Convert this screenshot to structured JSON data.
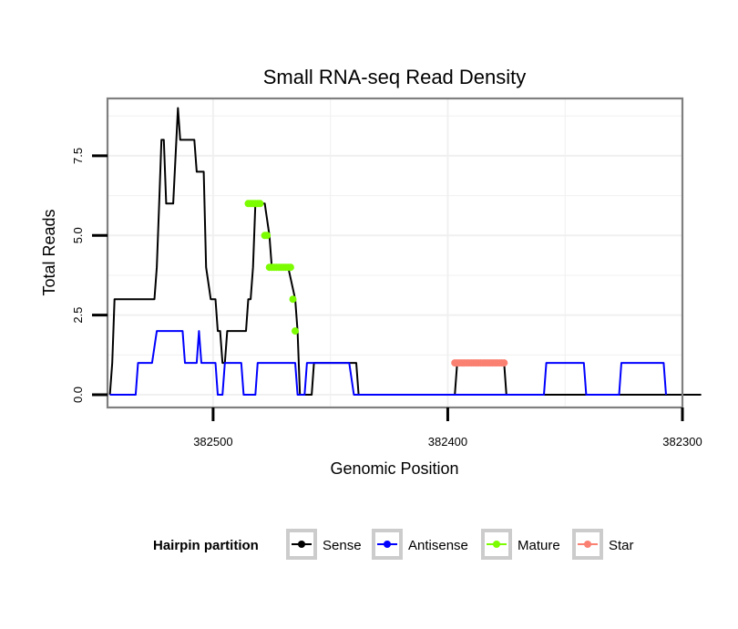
{
  "chart_data": {
    "type": "line",
    "title": "Small RNA-seq Read Density",
    "xlabel": "Genomic Position",
    "ylabel": "Total Reads",
    "x_reversed": true,
    "xlim": [
      382300,
      382545
    ],
    "ylim": [
      -0.4,
      9.3
    ],
    "x_ticks": [
      382500,
      382400,
      382300
    ],
    "x_tick_labels": [
      "382500",
      "382400",
      "382300"
    ],
    "y_ticks": [
      0,
      2.5,
      5,
      7.5
    ],
    "y_tick_labels": [
      "0.0",
      "2.5",
      "5.0",
      "7.5"
    ],
    "grid": true,
    "legend": {
      "title": "Hairpin partition",
      "position": "bottom",
      "entries": [
        {
          "name": "Sense",
          "color": "#000000"
        },
        {
          "name": "Antisense",
          "color": "#0000ff"
        },
        {
          "name": "Mature",
          "color": "#7cfc00"
        },
        {
          "name": "Star",
          "color": "#fa8072"
        }
      ]
    },
    "series": [
      {
        "name": "Sense",
        "color": "#000000",
        "style": "line",
        "points": [
          [
            382544,
            0
          ],
          [
            382543,
            1
          ],
          [
            382542,
            3
          ],
          [
            382525,
            3
          ],
          [
            382524,
            4
          ],
          [
            382523,
            6
          ],
          [
            382522,
            8
          ],
          [
            382521,
            8
          ],
          [
            382520,
            6
          ],
          [
            382517,
            6
          ],
          [
            382515,
            9
          ],
          [
            382514,
            8
          ],
          [
            382508,
            8
          ],
          [
            382507,
            7
          ],
          [
            382504,
            7
          ],
          [
            382503,
            4
          ],
          [
            382501,
            3
          ],
          [
            382499,
            3
          ],
          [
            382498,
            2
          ],
          [
            382497,
            2
          ],
          [
            382496,
            1
          ],
          [
            382495,
            1
          ],
          [
            382494,
            2
          ],
          [
            382486,
            2
          ],
          [
            382485,
            3
          ],
          [
            382484,
            3
          ],
          [
            382483,
            4
          ],
          [
            382482,
            6
          ],
          [
            382478,
            6
          ],
          [
            382476,
            5
          ],
          [
            382475,
            4
          ],
          [
            382468,
            4
          ],
          [
            382465,
            3
          ],
          [
            382464,
            2
          ],
          [
            382463,
            0
          ],
          [
            382458,
            0
          ],
          [
            382457,
            1
          ],
          [
            382439,
            1
          ],
          [
            382438,
            0
          ],
          [
            382397,
            0
          ],
          [
            382396,
            1
          ],
          [
            382376,
            1
          ],
          [
            382375,
            0
          ],
          [
            382292,
            0
          ]
        ]
      },
      {
        "name": "Antisense",
        "color": "#0000ff",
        "style": "line",
        "points": [
          [
            382544,
            0
          ],
          [
            382533,
            0
          ],
          [
            382532,
            1
          ],
          [
            382526,
            1
          ],
          [
            382524,
            2
          ],
          [
            382513,
            2
          ],
          [
            382512,
            1
          ],
          [
            382507,
            1
          ],
          [
            382506,
            2
          ],
          [
            382505,
            1
          ],
          [
            382499,
            1
          ],
          [
            382498,
            0
          ],
          [
            382496,
            0
          ],
          [
            382495,
            1
          ],
          [
            382488,
            1
          ],
          [
            382487,
            0
          ],
          [
            382482,
            0
          ],
          [
            382481,
            1
          ],
          [
            382465,
            1
          ],
          [
            382464,
            0
          ],
          [
            382461,
            0
          ],
          [
            382460,
            1
          ],
          [
            382442,
            1
          ],
          [
            382440,
            0
          ],
          [
            382359,
            0
          ],
          [
            382358,
            1
          ],
          [
            382342,
            1
          ],
          [
            382341,
            0
          ],
          [
            382327,
            0
          ],
          [
            382326,
            1
          ],
          [
            382308,
            1
          ],
          [
            382307,
            0
          ]
        ]
      },
      {
        "name": "Mature",
        "color": "#7cfc00",
        "style": "points",
        "points": [
          [
            382485,
            6
          ],
          [
            382484,
            6
          ],
          [
            382483,
            6
          ],
          [
            382482,
            6
          ],
          [
            382481,
            6
          ],
          [
            382480,
            6
          ],
          [
            382478,
            5
          ],
          [
            382477,
            5
          ],
          [
            382476,
            4
          ],
          [
            382475,
            4
          ],
          [
            382474,
            4
          ],
          [
            382473,
            4
          ],
          [
            382472,
            4
          ],
          [
            382471,
            4
          ],
          [
            382470,
            4
          ],
          [
            382469,
            4
          ],
          [
            382468,
            4
          ],
          [
            382467,
            4
          ],
          [
            382466,
            3
          ],
          [
            382465,
            2
          ]
        ]
      },
      {
        "name": "Star",
        "color": "#fa8072",
        "style": "points",
        "points": [
          [
            382397,
            1
          ],
          [
            382396,
            1
          ],
          [
            382395,
            1
          ],
          [
            382394,
            1
          ],
          [
            382393,
            1
          ],
          [
            382392,
            1
          ],
          [
            382391,
            1
          ],
          [
            382390,
            1
          ],
          [
            382389,
            1
          ],
          [
            382388,
            1
          ],
          [
            382387,
            1
          ],
          [
            382386,
            1
          ],
          [
            382385,
            1
          ],
          [
            382384,
            1
          ],
          [
            382383,
            1
          ],
          [
            382382,
            1
          ],
          [
            382381,
            1
          ],
          [
            382380,
            1
          ],
          [
            382379,
            1
          ],
          [
            382378,
            1
          ],
          [
            382377,
            1
          ],
          [
            382376,
            1
          ]
        ]
      }
    ]
  }
}
